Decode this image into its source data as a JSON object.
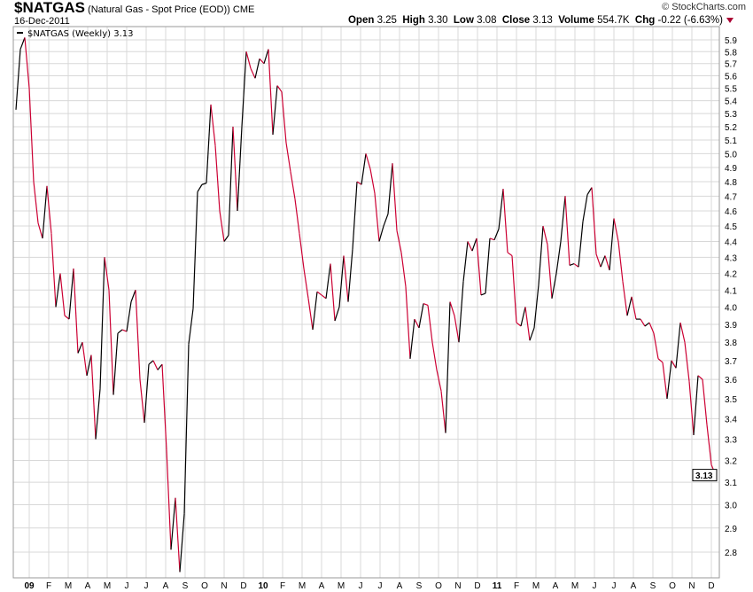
{
  "header": {
    "symbol": "$NATGAS",
    "name": "(Natural Gas - Spot Price (EOD))",
    "exchange": "CME",
    "date": "16-Dec-2011",
    "copyright": "© StockCharts.com",
    "quote": {
      "open_label": "Open",
      "open": "3.25",
      "high_label": "High",
      "high": "3.30",
      "low_label": "Low",
      "low": "3.08",
      "close_label": "Close",
      "close": "3.13",
      "volume_label": "Volume",
      "volume": "554.7K",
      "chg_label": "Chg",
      "chg": "-0.22 (-6.63%)"
    }
  },
  "colors": {
    "up": "#000000",
    "down": "#cc0033",
    "grid": "#d8d8d8",
    "change_arrow": "#aa0033"
  },
  "chart_data": {
    "type": "line",
    "legend": "$NATGAS (Weekly) 3.13",
    "frequency": "weekly",
    "end_date": "2011-12-16",
    "last_value_tag": "3.13",
    "y_scale": "log",
    "ylim": [
      2.7,
      5.95
    ],
    "y_ticks": [
      "2.8",
      "2.9",
      "3.0",
      "3.1",
      "3.2",
      "3.3",
      "3.4",
      "3.5",
      "3.6",
      "3.7",
      "3.8",
      "3.9",
      "4.0",
      "4.1",
      "4.2",
      "4.3",
      "4.4",
      "4.5",
      "4.6",
      "4.7",
      "4.8",
      "4.9",
      "5.0",
      "5.1",
      "5.2",
      "5.3",
      "5.4",
      "5.5",
      "5.6",
      "5.7",
      "5.8",
      "5.9"
    ],
    "x_ticks": [
      "09",
      "F",
      "M",
      "A",
      "M",
      "J",
      "J",
      "A",
      "S",
      "O",
      "N",
      "D",
      "10",
      "F",
      "M",
      "A",
      "M",
      "J",
      "J",
      "A",
      "S",
      "O",
      "N",
      "D",
      "11",
      "F",
      "M",
      "A",
      "M",
      "J",
      "J",
      "A",
      "S",
      "O",
      "N",
      "D"
    ],
    "grid": true,
    "values": [
      5.33,
      5.82,
      5.92,
      5.5,
      4.8,
      4.52,
      4.42,
      4.77,
      4.45,
      4.0,
      4.2,
      3.95,
      3.93,
      4.23,
      3.74,
      3.8,
      3.62,
      3.73,
      3.3,
      3.55,
      4.3,
      4.1,
      3.52,
      3.85,
      3.87,
      3.86,
      4.03,
      4.1,
      3.6,
      3.38,
      3.68,
      3.7,
      3.65,
      3.68,
      3.25,
      2.81,
      3.03,
      2.72,
      2.96,
      3.79,
      3.99,
      4.73,
      4.78,
      4.79,
      5.37,
      5.06,
      4.6,
      4.4,
      4.44,
      5.2,
      4.6,
      5.2,
      5.8,
      5.66,
      5.58,
      5.74,
      5.7,
      5.82,
      5.14,
      5.52,
      5.47,
      5.08,
      4.87,
      4.68,
      4.45,
      4.23,
      4.05,
      3.87,
      4.09,
      4.07,
      4.05,
      4.26,
      3.92,
      4.0,
      4.31,
      4.03,
      4.35,
      4.8,
      4.78,
      5.0,
      4.89,
      4.72,
      4.4,
      4.5,
      4.58,
      4.93,
      4.47,
      4.33,
      4.12,
      3.71,
      3.93,
      3.88,
      4.02,
      4.01,
      3.8,
      3.65,
      3.54,
      3.33,
      4.03,
      3.95,
      3.8,
      4.15,
      4.4,
      4.34,
      4.42,
      4.07,
      4.08,
      4.42,
      4.41,
      4.48,
      4.75,
      4.33,
      4.31,
      3.91,
      3.89,
      4.0,
      3.81,
      3.88,
      4.13,
      4.5,
      4.38,
      4.05,
      4.2,
      4.4,
      4.7,
      4.25,
      4.26,
      4.24,
      4.53,
      4.71,
      4.76,
      4.32,
      4.24,
      4.31,
      4.22,
      4.55,
      4.4,
      4.15,
      3.95,
      4.06,
      3.93,
      3.93,
      3.89,
      3.91,
      3.85,
      3.71,
      3.69,
      3.5,
      3.7,
      3.66,
      3.91,
      3.8,
      3.59,
      3.32,
      3.62,
      3.6,
      3.37,
      3.18,
      3.13
    ]
  }
}
